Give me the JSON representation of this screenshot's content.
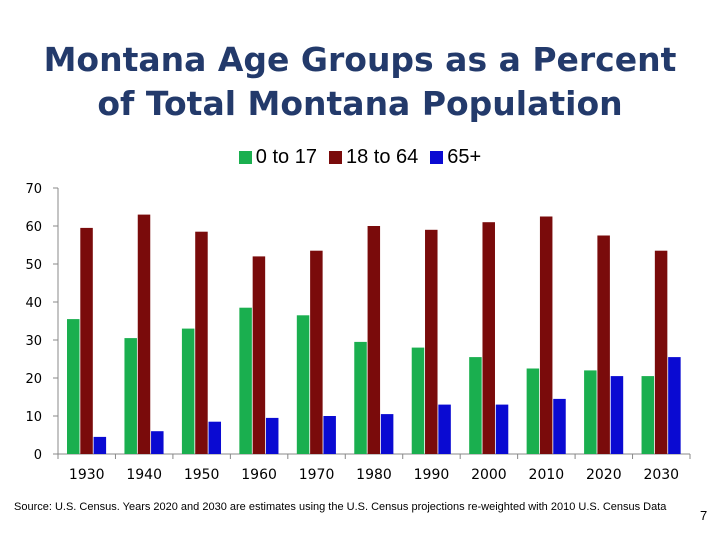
{
  "page": {
    "source_note": "Source: U.S. Census.  Years 2020 and 2030 are estimates using the U.S. Census projections re-weighted with 2010 U.S. Census Data",
    "page_number": "7"
  },
  "colors": {
    "title": "#233a6b",
    "series": [
      "#1aaf4f",
      "#7a0b0b",
      "#0a0ad2"
    ],
    "axis": "#888888"
  },
  "chart_data": {
    "type": "bar",
    "title_lines": [
      "Montana Age Groups as a Percent",
      "of Total Montana Population"
    ],
    "categories": [
      "1930",
      "1940",
      "1950",
      "1960",
      "1970",
      "1980",
      "1990",
      "2000",
      "2010",
      "2020",
      "2030"
    ],
    "series": [
      {
        "name": "0 to 17",
        "values": [
          35.5,
          30.5,
          33,
          38.5,
          36.5,
          29.5,
          28,
          25.5,
          22.5,
          22,
          20.5
        ]
      },
      {
        "name": "18 to 64",
        "values": [
          59.5,
          63,
          58.5,
          52,
          53.5,
          60,
          59,
          61,
          62.5,
          57.5,
          53.5
        ]
      },
      {
        "name": "65+",
        "values": [
          4.5,
          6,
          8.5,
          9.5,
          10,
          10.5,
          13,
          13,
          14.5,
          20.5,
          25.5
        ]
      }
    ],
    "ylim": [
      0,
      70
    ],
    "yticks": [
      0,
      10,
      20,
      30,
      40,
      50,
      60,
      70
    ],
    "xlabel": "",
    "ylabel": "",
    "legend_position": "top-center",
    "grid": false
  }
}
